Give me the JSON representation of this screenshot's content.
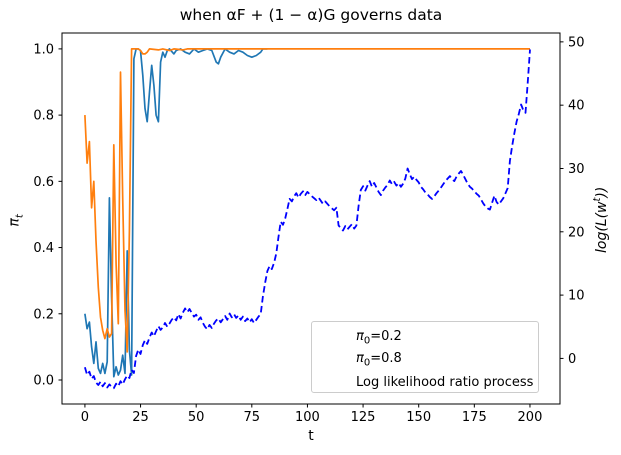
{
  "figure": {
    "title": "when αF + (1 − α)G governs data"
  },
  "axes": {
    "xlabel": "t",
    "ylabel_left_base": "π",
    "ylabel_left_sub": "t",
    "ylabel_right_pre": "log(L(w",
    "ylabel_right_sup": "t",
    "ylabel_right_post": "))"
  },
  "legend": {
    "item1_base": "π",
    "item1_sub": "0",
    "item1_rest": "=0.2",
    "item2_base": "π",
    "item2_sub": "0",
    "item2_rest": "=0.8",
    "item3_label": "Log likelihood ratio process"
  },
  "colors": {
    "series_pi02": "#1f77b4",
    "series_pi08": "#ff7f0e",
    "series_loglik": "#0000ff",
    "spine": "#000000",
    "legend_border": "#cccccc"
  },
  "chart_data": {
    "type": "line",
    "title": "when αF + (1 − α)G governs data",
    "xlabel": "t",
    "ylabel_left": "π_t",
    "ylabel_right": "log(L(w^t))",
    "x_ticks": [
      0,
      25,
      50,
      75,
      100,
      125,
      150,
      175,
      200
    ],
    "y_left_ticks": [
      "0.0",
      "0.2",
      "0.4",
      "0.6",
      "0.8",
      "1.0"
    ],
    "y_right_ticks": [
      0,
      10,
      20,
      30,
      40,
      50
    ],
    "xlim": [
      -10.3,
      213.5
    ],
    "ylim_left": [
      -0.0725,
      1.048
    ],
    "ylim_right": [
      -7.2,
      51.4
    ],
    "grid": false,
    "legend_position": "lower right",
    "series": [
      {
        "name": "π0=0.2",
        "color": "#1f77b4",
        "style": "solid",
        "axis": "left",
        "points": [
          [
            0,
            0.2
          ],
          [
            1,
            0.155
          ],
          [
            2,
            0.175
          ],
          [
            3,
            0.1
          ],
          [
            4,
            0.05
          ],
          [
            5,
            0.115
          ],
          [
            6,
            0.035
          ],
          [
            7,
            0.02
          ],
          [
            8,
            0.05
          ],
          [
            9,
            0.02
          ],
          [
            10,
            0.055
          ],
          [
            11,
            0.55
          ],
          [
            12,
            0.25
          ],
          [
            13,
            0.01
          ],
          [
            14,
            0.04
          ],
          [
            15,
            0.015
          ],
          [
            16,
            0.03
          ],
          [
            17,
            0.075
          ],
          [
            18,
            0.02
          ],
          [
            19,
            0.39
          ],
          [
            20,
            0.09
          ],
          [
            21,
            0.015
          ],
          [
            22,
            0.97
          ],
          [
            23,
            1.0
          ],
          [
            24,
            1.0
          ],
          [
            25,
            0.995
          ],
          [
            26,
            0.92
          ],
          [
            27,
            0.82
          ],
          [
            28,
            0.78
          ],
          [
            29,
            0.87
          ],
          [
            30,
            0.95
          ],
          [
            31,
            0.89
          ],
          [
            32,
            0.8
          ],
          [
            33,
            0.78
          ],
          [
            34,
            0.96
          ],
          [
            35,
            0.99
          ],
          [
            36,
            0.975
          ],
          [
            37,
            0.995
          ],
          [
            38,
            1.0
          ],
          [
            40,
            0.985
          ],
          [
            41,
            0.995
          ],
          [
            43,
            1.0
          ],
          [
            45,
            0.99
          ],
          [
            47,
            0.985
          ],
          [
            49,
            1.0
          ],
          [
            51,
            0.99
          ],
          [
            53,
            0.995
          ],
          [
            55,
            1.0
          ],
          [
            57,
            0.995
          ],
          [
            59,
            0.96
          ],
          [
            60,
            0.955
          ],
          [
            61,
            0.975
          ],
          [
            63,
            1.0
          ],
          [
            65,
            0.99
          ],
          [
            67,
            0.985
          ],
          [
            69,
            0.995
          ],
          [
            71,
            0.99
          ],
          [
            73,
            0.98
          ],
          [
            75,
            0.975
          ],
          [
            77,
            0.98
          ],
          [
            79,
            0.99
          ],
          [
            80,
            1.0
          ],
          [
            82,
            1.0
          ]
        ]
      },
      {
        "name": "π0=0.8",
        "color": "#ff7f0e",
        "style": "solid",
        "axis": "left",
        "points": [
          [
            0,
            0.8
          ],
          [
            1,
            0.655
          ],
          [
            2,
            0.72
          ],
          [
            3,
            0.52
          ],
          [
            4,
            0.6
          ],
          [
            5,
            0.42
          ],
          [
            6,
            0.28
          ],
          [
            7,
            0.19
          ],
          [
            8,
            0.15
          ],
          [
            9,
            0.125
          ],
          [
            10,
            0.155
          ],
          [
            11,
            0.13
          ],
          [
            12,
            0.14
          ],
          [
            13,
            0.71
          ],
          [
            14,
            0.35
          ],
          [
            15,
            0.17
          ],
          [
            16,
            0.93
          ],
          [
            17,
            0.55
          ],
          [
            18,
            0.21
          ],
          [
            19,
            0.085
          ],
          [
            20,
            0.45
          ],
          [
            21,
            1.0
          ],
          [
            22,
            1.0
          ],
          [
            24,
            1.0
          ],
          [
            25,
            0.995
          ],
          [
            26,
            0.985
          ],
          [
            27,
            0.985
          ],
          [
            28,
            0.99
          ],
          [
            29,
            1.0
          ],
          [
            33,
            0.997
          ],
          [
            35,
            1.0
          ],
          [
            38,
            0.995
          ],
          [
            40,
            1.0
          ],
          [
            44,
            0.997
          ],
          [
            46,
            1.0
          ],
          [
            200,
            1.0
          ]
        ]
      },
      {
        "name": "Log likelihood ratio process",
        "color": "#0000ff",
        "style": "dashed",
        "axis": "right",
        "points": [
          [
            0,
            -1.4
          ],
          [
            1,
            -2.6
          ],
          [
            2,
            -2.1
          ],
          [
            3,
            -3.2
          ],
          [
            4,
            -2.8
          ],
          [
            5,
            -3.8
          ],
          [
            6,
            -4.2
          ],
          [
            7,
            -3.7
          ],
          [
            8,
            -4.4
          ],
          [
            9,
            -3.9
          ],
          [
            10,
            -4.6
          ],
          [
            11,
            -4.1
          ],
          [
            12,
            -4.5
          ],
          [
            13,
            -4.7
          ],
          [
            14,
            -4.0
          ],
          [
            15,
            -4.4
          ],
          [
            16,
            -3.6
          ],
          [
            17,
            -4.1
          ],
          [
            18,
            -3.3
          ],
          [
            19,
            -2.7
          ],
          [
            20,
            -3.1
          ],
          [
            21,
            -1.8
          ],
          [
            22,
            -2.3
          ],
          [
            23,
            0.4
          ],
          [
            24,
            1.4
          ],
          [
            25,
            0.7
          ],
          [
            26,
            2.1
          ],
          [
            27,
            2.9
          ],
          [
            28,
            2.3
          ],
          [
            29,
            3.3
          ],
          [
            30,
            4.1
          ],
          [
            31,
            3.5
          ],
          [
            32,
            4.3
          ],
          [
            33,
            5.1
          ],
          [
            34,
            4.5
          ],
          [
            35,
            4.9
          ],
          [
            36,
            5.6
          ],
          [
            37,
            5.0
          ],
          [
            38,
            5.5
          ],
          [
            39,
            6.1
          ],
          [
            40,
            6.5
          ],
          [
            41,
            6.0
          ],
          [
            42,
            7.0
          ],
          [
            43,
            6.3
          ],
          [
            44,
            7.2
          ],
          [
            45,
            7.9
          ],
          [
            46,
            7.3
          ],
          [
            47,
            7.8
          ],
          [
            48,
            7.2
          ],
          [
            49,
            6.6
          ],
          [
            50,
            6.9
          ],
          [
            51,
            6.1
          ],
          [
            52,
            6.5
          ],
          [
            53,
            5.6
          ],
          [
            54,
            5.0
          ],
          [
            55,
            4.6
          ],
          [
            56,
            5.3
          ],
          [
            57,
            4.8
          ],
          [
            58,
            5.5
          ],
          [
            59,
            6.0
          ],
          [
            60,
            6.3
          ],
          [
            61,
            5.7
          ],
          [
            62,
            6.2
          ],
          [
            63,
            6.7
          ],
          [
            64,
            6.1
          ],
          [
            65,
            7.1
          ],
          [
            66,
            6.5
          ],
          [
            67,
            7.0
          ],
          [
            68,
            6.4
          ],
          [
            69,
            6.8
          ],
          [
            70,
            6.1
          ],
          [
            71,
            6.6
          ],
          [
            72,
            5.9
          ],
          [
            73,
            6.3
          ],
          [
            74,
            5.7
          ],
          [
            75,
            6.2
          ],
          [
            76,
            5.6
          ],
          [
            77,
            6.1
          ],
          [
            78,
            6.6
          ],
          [
            79,
            7.0
          ],
          [
            80,
            9.8
          ],
          [
            81,
            12.0
          ],
          [
            82,
            13.8
          ],
          [
            83,
            14.6
          ],
          [
            84,
            14.1
          ],
          [
            85,
            15.1
          ],
          [
            86,
            16.6
          ],
          [
            87,
            19.2
          ],
          [
            88,
            21.6
          ],
          [
            89,
            21.1
          ],
          [
            90,
            22.1
          ],
          [
            91,
            23.6
          ],
          [
            92,
            25.2
          ],
          [
            93,
            24.8
          ],
          [
            94,
            25.6
          ],
          [
            95,
            26.1
          ],
          [
            96,
            25.4
          ],
          [
            97,
            26.0
          ],
          [
            98,
            26.4
          ],
          [
            99,
            25.8
          ],
          [
            100,
            26.3
          ],
          [
            102,
            25.6
          ],
          [
            104,
            25.0
          ],
          [
            105,
            25.4
          ],
          [
            107,
            24.4
          ],
          [
            108,
            24.8
          ],
          [
            110,
            24.0
          ],
          [
            112,
            23.4
          ],
          [
            113,
            23.8
          ],
          [
            114,
            21.0
          ],
          [
            115,
            20.6
          ],
          [
            116,
            20.2
          ],
          [
            117,
            20.9
          ],
          [
            118,
            20.4
          ],
          [
            119,
            20.8
          ],
          [
            120,
            21.2
          ],
          [
            121,
            20.5
          ],
          [
            122,
            21.0
          ],
          [
            123,
            24.1
          ],
          [
            124,
            26.6
          ],
          [
            125,
            27.2
          ],
          [
            126,
            26.5
          ],
          [
            127,
            27.3
          ],
          [
            128,
            28.0
          ],
          [
            129,
            27.1
          ],
          [
            130,
            27.7
          ],
          [
            131,
            27.0
          ],
          [
            132,
            26.3
          ],
          [
            133,
            25.8
          ],
          [
            134,
            26.5
          ],
          [
            135,
            27.0
          ],
          [
            136,
            27.4
          ],
          [
            137,
            28.1
          ],
          [
            138,
            27.5
          ],
          [
            139,
            27.9
          ],
          [
            140,
            27.3
          ],
          [
            141,
            27.7
          ],
          [
            142,
            27.1
          ],
          [
            143,
            27.6
          ],
          [
            144,
            28.4
          ],
          [
            145,
            30.0
          ],
          [
            146,
            29.1
          ],
          [
            147,
            28.3
          ],
          [
            148,
            28.7
          ],
          [
            149,
            28.2
          ],
          [
            150,
            27.8
          ],
          [
            151,
            27.1
          ],
          [
            152,
            26.7
          ],
          [
            153,
            26.2
          ],
          [
            154,
            25.9
          ],
          [
            155,
            25.5
          ],
          [
            156,
            25.2
          ],
          [
            157,
            25.6
          ],
          [
            158,
            26.1
          ],
          [
            159,
            26.5
          ],
          [
            160,
            27.0
          ],
          [
            161,
            27.5
          ],
          [
            162,
            28.0
          ],
          [
            163,
            28.4
          ],
          [
            164,
            28.8
          ],
          [
            165,
            28.3
          ],
          [
            166,
            28.0
          ],
          [
            167,
            28.7
          ],
          [
            168,
            29.2
          ],
          [
            169,
            29.6
          ],
          [
            170,
            29.0
          ],
          [
            171,
            28.3
          ],
          [
            172,
            27.6
          ],
          [
            173,
            27.1
          ],
          [
            174,
            26.8
          ],
          [
            175,
            26.4
          ],
          [
            176,
            26.0
          ],
          [
            177,
            25.7
          ],
          [
            178,
            25.1
          ],
          [
            179,
            24.5
          ],
          [
            180,
            24.0
          ],
          [
            181,
            23.7
          ],
          [
            182,
            23.5
          ],
          [
            183,
            24.6
          ],
          [
            184,
            25.7
          ],
          [
            185,
            24.7
          ],
          [
            186,
            24.3
          ],
          [
            187,
            24.8
          ],
          [
            188,
            25.3
          ],
          [
            189,
            26.1
          ],
          [
            190,
            26.9
          ],
          [
            191,
            31.2
          ],
          [
            192,
            33.6
          ],
          [
            193,
            35.6
          ],
          [
            194,
            37.4
          ],
          [
            195,
            38.6
          ],
          [
            196,
            40.1
          ],
          [
            197,
            39.2
          ],
          [
            198,
            38.8
          ],
          [
            199,
            43.5
          ],
          [
            200,
            48.8
          ]
        ]
      }
    ]
  }
}
